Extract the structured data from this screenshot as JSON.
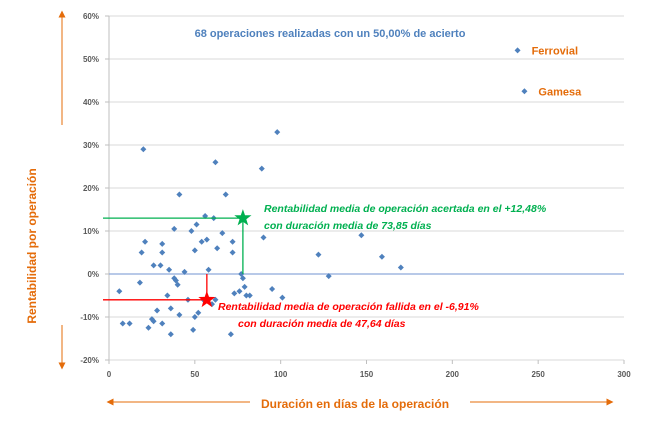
{
  "chart_data": {
    "type": "scatter",
    "title": "68 operaciones realizadas con un 50,00% de acierto",
    "xlabel": "Duración en días de la operación",
    "ylabel": "Rentabilidad por operación",
    "xlim": [
      0,
      300
    ],
    "ylim": [
      -20,
      60
    ],
    "x_ticks": [
      "0",
      "50",
      "100",
      "150",
      "200",
      "250",
      "300"
    ],
    "y_ticks": [
      "-20%",
      "-10%",
      "0%",
      "10%",
      "20%",
      "30%",
      "40%",
      "50%",
      "60%"
    ],
    "grid": "horizontal",
    "legend": "none",
    "marker_color": "#4f81bd",
    "points": [
      [
        238,
        52
      ],
      [
        242,
        42.5
      ],
      [
        98,
        33
      ],
      [
        20,
        29
      ],
      [
        62,
        26
      ],
      [
        89,
        24.5
      ],
      [
        68,
        18.5
      ],
      [
        41,
        18.5
      ],
      [
        56,
        13.5
      ],
      [
        61,
        13
      ],
      [
        51,
        11.5
      ],
      [
        48,
        10
      ],
      [
        66,
        9.5
      ],
      [
        147,
        9
      ],
      [
        38,
        10.5
      ],
      [
        90,
        8.5
      ],
      [
        54,
        7.5
      ],
      [
        72,
        7.5
      ],
      [
        21,
        7.5
      ],
      [
        31,
        7
      ],
      [
        57,
        8
      ],
      [
        63,
        6
      ],
      [
        50,
        5.5
      ],
      [
        19,
        5
      ],
      [
        31,
        5
      ],
      [
        72,
        5
      ],
      [
        122,
        4.5
      ],
      [
        159,
        4
      ],
      [
        26,
        2
      ],
      [
        30,
        2
      ],
      [
        35,
        1
      ],
      [
        170,
        1.5
      ],
      [
        58,
        1
      ],
      [
        44,
        0.5
      ],
      [
        77,
        0
      ],
      [
        128,
        -0.5
      ],
      [
        78,
        -1
      ],
      [
        38,
        -1
      ],
      [
        39,
        -1.5
      ],
      [
        18,
        -2
      ],
      [
        40,
        -2.5
      ],
      [
        95,
        -3.5
      ],
      [
        79,
        -3
      ],
      [
        34,
        -5
      ],
      [
        6,
        -4
      ],
      [
        76,
        -4
      ],
      [
        73,
        -4.5
      ],
      [
        80,
        -5
      ],
      [
        82,
        -5
      ],
      [
        101,
        -5.5
      ],
      [
        46,
        -6
      ],
      [
        55,
        -6
      ],
      [
        62,
        -6
      ],
      [
        60,
        -7
      ],
      [
        36,
        -8
      ],
      [
        28,
        -8.5
      ],
      [
        52,
        -9
      ],
      [
        41,
        -9.5
      ],
      [
        50,
        -10
      ],
      [
        25,
        -10.5
      ],
      [
        26,
        -11
      ],
      [
        31,
        -11.5
      ],
      [
        8,
        -11.5
      ],
      [
        12,
        -11.5
      ],
      [
        23,
        -12.5
      ],
      [
        49,
        -13
      ],
      [
        36,
        -14
      ],
      [
        71,
        -14
      ]
    ],
    "point_labels": [
      {
        "text": "Ferrovial",
        "x": 238,
        "y": 52
      },
      {
        "text": "Gamesa",
        "x": 242,
        "y": 42.5
      }
    ],
    "averages": [
      {
        "name": "acertada",
        "x": 78,
        "y": 13,
        "color": "#00b050",
        "text": [
          "Rentabilidad media de operación acertada en el +12,48%",
          "con duración media de 73,85 días"
        ]
      },
      {
        "name": "fallida",
        "x": 57,
        "y": -6,
        "color": "#ff0000",
        "text": [
          "Rentabilidad media de operación fallida en el -6,91%",
          "con duración media de 47,64 días"
        ]
      }
    ]
  }
}
